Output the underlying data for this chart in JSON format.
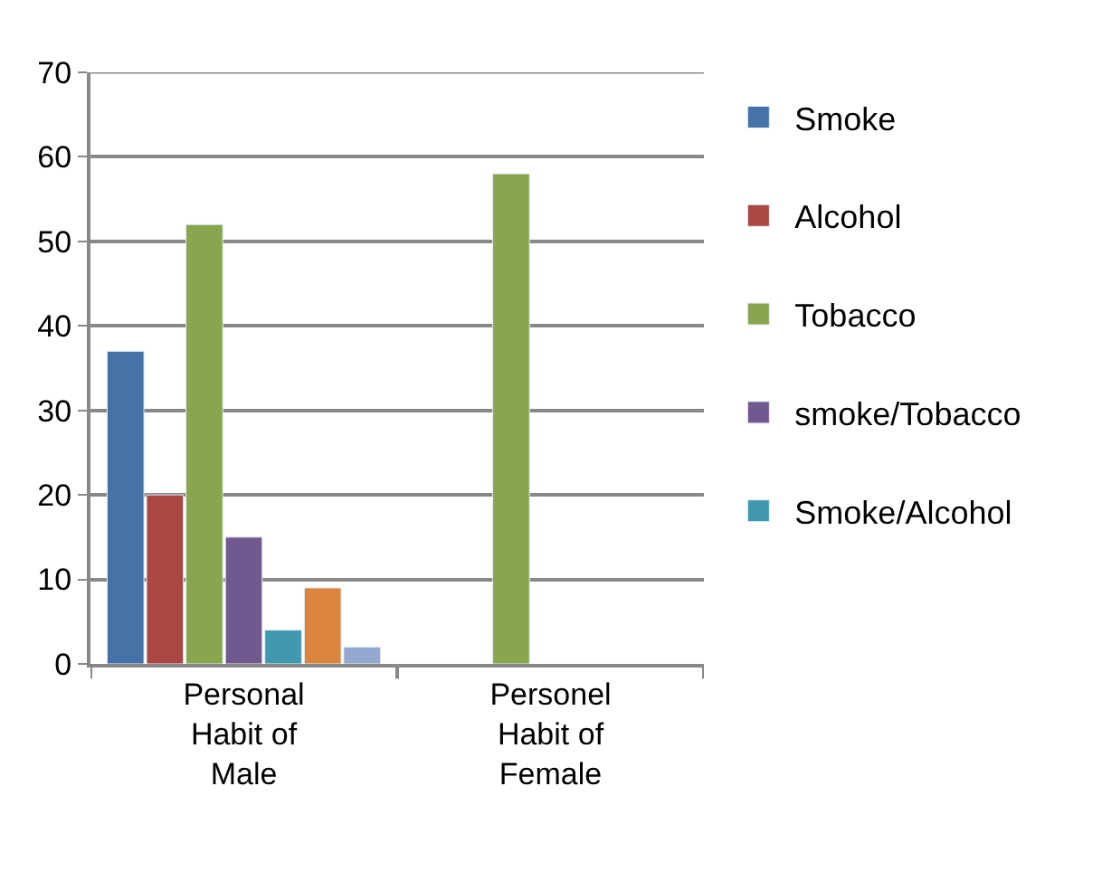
{
  "chart_data": {
    "type": "bar",
    "categories": [
      "Personal Habit of Male",
      "Personel Habit of Female"
    ],
    "series": [
      {
        "name": "Smoke",
        "color": "#4572a7",
        "values": [
          37,
          null
        ]
      },
      {
        "name": "Alcohol",
        "color": "#aa4643",
        "values": [
          20,
          null
        ]
      },
      {
        "name": "Tobacco",
        "color": "#89a54e",
        "values": [
          52,
          58
        ]
      },
      {
        "name": "smoke/Tobacco",
        "color": "#71588f",
        "values": [
          15,
          null
        ]
      },
      {
        "name": "Smoke/Alcohol",
        "color": "#4198af",
        "values": [
          4,
          null
        ]
      },
      {
        "color": "#db843d",
        "values": [
          9,
          null
        ]
      },
      {
        "color": "#93a9cf",
        "values": [
          2,
          null
        ]
      }
    ],
    "ylim": [
      0,
      70
    ],
    "yticks": [
      0,
      10,
      20,
      30,
      40,
      50,
      60,
      70
    ],
    "grid": "y",
    "legend": "right"
  }
}
